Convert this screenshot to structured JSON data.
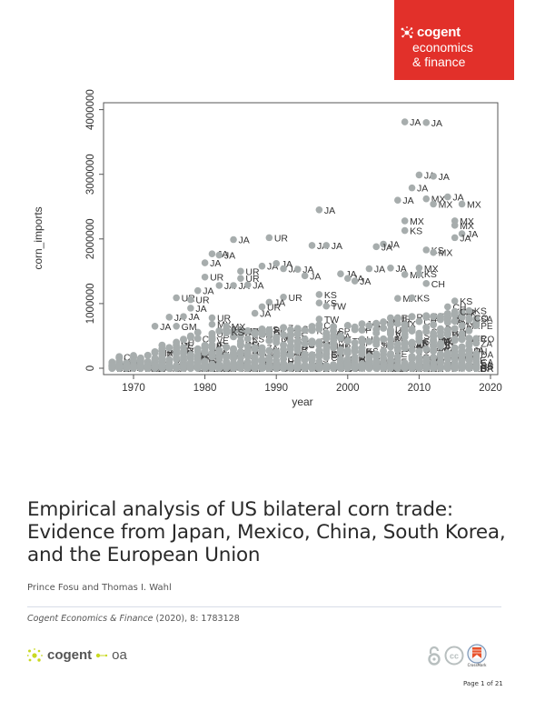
{
  "header": {
    "brand_line1": "cogent",
    "brand_line2": "economics",
    "brand_line3": "& finance",
    "brand_color": "#e2302a"
  },
  "chart_data": {
    "type": "scatter",
    "title": "",
    "xlabel": "year",
    "ylabel": "corn_imports",
    "xlim": [
      1966,
      2021
    ],
    "ylim": [
      -100000,
      4300000
    ],
    "x_ticks": [
      1970,
      1980,
      1990,
      2000,
      2010,
      2020
    ],
    "y_ticks": [
      0,
      1000000,
      2000000,
      3000000,
      4000000
    ],
    "y_tick_labels": [
      "0",
      "1000000",
      "2000000",
      "3000000",
      "4000000"
    ],
    "grid": false,
    "legend": "none",
    "marker_color": "#a7adad",
    "label_color": "#333333",
    "labeled_points": [
      {
        "x": 2008,
        "y": 3810000,
        "label": "JA"
      },
      {
        "x": 2011,
        "y": 3800000,
        "label": "JA"
      },
      {
        "x": 2010,
        "y": 2990000,
        "label": "JA"
      },
      {
        "x": 2012,
        "y": 2970000,
        "label": "JA"
      },
      {
        "x": 2009,
        "y": 2790000,
        "label": "JA"
      },
      {
        "x": 2007,
        "y": 2600000,
        "label": "JA"
      },
      {
        "x": 2011,
        "y": 2620000,
        "label": "MX"
      },
      {
        "x": 2012,
        "y": 2540000,
        "label": "MX"
      },
      {
        "x": 2014,
        "y": 2650000,
        "label": "JA"
      },
      {
        "x": 2016,
        "y": 2540000,
        "label": "MX"
      },
      {
        "x": 2008,
        "y": 2280000,
        "label": "MX"
      },
      {
        "x": 2008,
        "y": 2130000,
        "label": "KS"
      },
      {
        "x": 2015,
        "y": 2280000,
        "label": "MX"
      },
      {
        "x": 2015,
        "y": 2210000,
        "label": "MX"
      },
      {
        "x": 2016,
        "y": 2080000,
        "label": "JA"
      },
      {
        "x": 2015,
        "y": 2020000,
        "label": "JA"
      },
      {
        "x": 2005,
        "y": 1920000,
        "label": "JA"
      },
      {
        "x": 2004,
        "y": 1880000,
        "label": "JA"
      },
      {
        "x": 2011,
        "y": 1830000,
        "label": "KS"
      },
      {
        "x": 2012,
        "y": 1790000,
        "label": "MX"
      },
      {
        "x": 1996,
        "y": 2450000,
        "label": "JA"
      },
      {
        "x": 1995,
        "y": 1900000,
        "label": "JA"
      },
      {
        "x": 1997,
        "y": 1900000,
        "label": "JA"
      },
      {
        "x": 1984,
        "y": 1990000,
        "label": "JA"
      },
      {
        "x": 1989,
        "y": 2020000,
        "label": "UR"
      },
      {
        "x": 1981,
        "y": 1770000,
        "label": "JA"
      },
      {
        "x": 1982,
        "y": 1750000,
        "label": "JA"
      },
      {
        "x": 1980,
        "y": 1630000,
        "label": "JA"
      },
      {
        "x": 1980,
        "y": 1410000,
        "label": "UR"
      },
      {
        "x": 1982,
        "y": 1280000,
        "label": "JA"
      },
      {
        "x": 1979,
        "y": 1200000,
        "label": "JA"
      },
      {
        "x": 1976,
        "y": 1090000,
        "label": "UR"
      },
      {
        "x": 1978,
        "y": 1060000,
        "label": "UR"
      },
      {
        "x": 1978,
        "y": 930000,
        "label": "JA"
      },
      {
        "x": 1985,
        "y": 1500000,
        "label": "UR"
      },
      {
        "x": 1985,
        "y": 1390000,
        "label": "UR"
      },
      {
        "x": 1984,
        "y": 1280000,
        "label": "JA"
      },
      {
        "x": 1986,
        "y": 1290000,
        "label": "JA"
      },
      {
        "x": 1988,
        "y": 1580000,
        "label": "JA"
      },
      {
        "x": 1990,
        "y": 1620000,
        "label": "JA"
      },
      {
        "x": 1991,
        "y": 1540000,
        "label": "JA"
      },
      {
        "x": 1993,
        "y": 1530000,
        "label": "JA"
      },
      {
        "x": 1994,
        "y": 1430000,
        "label": "JA"
      },
      {
        "x": 1991,
        "y": 1100000,
        "label": "UR"
      },
      {
        "x": 1989,
        "y": 1020000,
        "label": "JA"
      },
      {
        "x": 1988,
        "y": 950000,
        "label": "UR"
      },
      {
        "x": 1987,
        "y": 850000,
        "label": "JA"
      },
      {
        "x": 1996,
        "y": 1140000,
        "label": "KS"
      },
      {
        "x": 1996,
        "y": 1010000,
        "label": "KS"
      },
      {
        "x": 1997,
        "y": 960000,
        "label": "TW"
      },
      {
        "x": 1996,
        "y": 760000,
        "label": "TW"
      },
      {
        "x": 1999,
        "y": 1460000,
        "label": "JA"
      },
      {
        "x": 2000,
        "y": 1390000,
        "label": "JA"
      },
      {
        "x": 2001,
        "y": 1350000,
        "label": "JA"
      },
      {
        "x": 2003,
        "y": 1540000,
        "label": "JA"
      },
      {
        "x": 2006,
        "y": 1550000,
        "label": "JA"
      },
      {
        "x": 2008,
        "y": 1450000,
        "label": "MX"
      },
      {
        "x": 2010,
        "y": 1550000,
        "label": "MX"
      },
      {
        "x": 2010,
        "y": 1460000,
        "label": "KS"
      },
      {
        "x": 2011,
        "y": 1310000,
        "label": "CH"
      },
      {
        "x": 2007,
        "y": 1080000,
        "label": "MX"
      },
      {
        "x": 2009,
        "y": 1090000,
        "label": "KS"
      },
      {
        "x": 2015,
        "y": 1040000,
        "label": "KS"
      },
      {
        "x": 2014,
        "y": 950000,
        "label": "CH"
      },
      {
        "x": 2015,
        "y": 880000,
        "label": "CO"
      },
      {
        "x": 2017,
        "y": 890000,
        "label": "KS"
      },
      {
        "x": 2017,
        "y": 780000,
        "label": "CO"
      },
      {
        "x": 1975,
        "y": 790000,
        "label": "JA"
      },
      {
        "x": 1973,
        "y": 650000,
        "label": "JA"
      },
      {
        "x": 1977,
        "y": 800000,
        "label": "JA"
      },
      {
        "x": 1976,
        "y": 650000,
        "label": "GM"
      },
      {
        "x": 1981,
        "y": 780000,
        "label": "UR"
      },
      {
        "x": 1981,
        "y": 680000,
        "label": "MX"
      },
      {
        "x": 1983,
        "y": 650000,
        "label": "MX"
      },
      {
        "x": 1983,
        "y": 560000,
        "label": "KS"
      }
    ],
    "dense_band": {
      "description": "Dense cluster of overlapping points with country labels for all years 1967-2018, mostly between 0 and ~800000",
      "years_start": 1967,
      "years_end": 2018,
      "band_upper_by_year": [
        [
          1967,
          160000
        ],
        [
          1970,
          230000
        ],
        [
          1973,
          320000
        ],
        [
          1976,
          450000
        ],
        [
          1979,
          560000
        ],
        [
          1982,
          620000
        ],
        [
          1985,
          600000
        ],
        [
          1988,
          640000
        ],
        [
          1991,
          640000
        ],
        [
          1994,
          680000
        ],
        [
          1997,
          720000
        ],
        [
          2000,
          680000
        ],
        [
          2003,
          720000
        ],
        [
          2006,
          780000
        ],
        [
          2009,
          820000
        ],
        [
          2012,
          820000
        ],
        [
          2015,
          900000
        ],
        [
          2018,
          800000
        ]
      ],
      "sample_labels": [
        "JA",
        "MX",
        "KS",
        "TW",
        "CH",
        "EG",
        "CO",
        "VE",
        "PE",
        "SA",
        "RS",
        "SP",
        "CA",
        "GM",
        "UR",
        "IR",
        "DA",
        "PB",
        "GU",
        "ZA"
      ]
    }
  },
  "article": {
    "title": "Empirical analysis of US bilateral corn trade: Evidence from Japan, Mexico, China, South Korea, and the European Union",
    "authors": "Prince Fosu and Thomas I. Wahl",
    "journal": "Cogent Economics & Finance",
    "citation_rest": " (2020), 8: 1783128"
  },
  "footer": {
    "oa_brand": "cogent",
    "oa_suffix": "oa",
    "crossmark_label": "CrossMark",
    "page": "Page 1 of 21"
  }
}
